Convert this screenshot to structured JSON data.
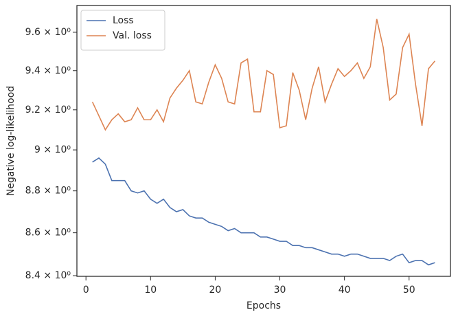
{
  "chart_data": {
    "type": "line",
    "x_label": "Epochs",
    "y_label": "Negative log-likelihood",
    "x": [
      1,
      2,
      3,
      4,
      5,
      6,
      7,
      8,
      9,
      10,
      11,
      12,
      13,
      14,
      15,
      16,
      17,
      18,
      19,
      20,
      21,
      22,
      23,
      24,
      25,
      26,
      27,
      28,
      29,
      30,
      31,
      32,
      33,
      34,
      35,
      36,
      37,
      38,
      39,
      40,
      41,
      42,
      43,
      44,
      45,
      46,
      47,
      48,
      49,
      50,
      51,
      52,
      53,
      54
    ],
    "series": [
      {
        "name": "Loss",
        "color": "#4c72b0",
        "values": [
          8.94,
          8.96,
          8.93,
          8.85,
          8.85,
          8.85,
          8.8,
          8.79,
          8.8,
          8.76,
          8.74,
          8.76,
          8.72,
          8.7,
          8.71,
          8.68,
          8.67,
          8.67,
          8.65,
          8.64,
          8.63,
          8.61,
          8.62,
          8.6,
          8.6,
          8.6,
          8.58,
          8.58,
          8.57,
          8.56,
          8.56,
          8.54,
          8.54,
          8.53,
          8.53,
          8.52,
          8.51,
          8.5,
          8.5,
          8.49,
          8.5,
          8.5,
          8.49,
          8.48,
          8.48,
          8.48,
          8.47,
          8.49,
          8.5,
          8.46,
          8.47,
          8.47,
          8.45,
          8.46
        ]
      },
      {
        "name": "Val. loss",
        "color": "#dd8452",
        "values": [
          9.24,
          9.17,
          9.1,
          9.15,
          9.18,
          9.14,
          9.15,
          9.21,
          9.15,
          9.15,
          9.2,
          9.14,
          9.26,
          9.31,
          9.35,
          9.4,
          9.24,
          9.23,
          9.34,
          9.43,
          9.36,
          9.24,
          9.23,
          9.44,
          9.46,
          9.19,
          9.19,
          9.4,
          9.38,
          9.11,
          9.12,
          9.39,
          9.3,
          9.15,
          9.31,
          9.42,
          9.24,
          9.33,
          9.41,
          9.37,
          9.4,
          9.44,
          9.36,
          9.42,
          9.67,
          9.52,
          9.25,
          9.28,
          9.52,
          9.59,
          9.33,
          9.12,
          9.41,
          9.45
        ]
      }
    ],
    "xlim": [
      -1.4,
      56.4
    ],
    "xticks": [
      0,
      10,
      20,
      30,
      40,
      50
    ],
    "ylim": [
      8.397,
      9.742
    ],
    "y_scale": "log",
    "yticks": [
      {
        "value": 8.4,
        "label": "8.4 × 10⁰"
      },
      {
        "value": 8.6,
        "label": "8.6 × 10⁰"
      },
      {
        "value": 8.8,
        "label": "8.8 × 10⁰"
      },
      {
        "value": 9.0,
        "label": "9 × 10⁰"
      },
      {
        "value": 9.2,
        "label": "9.2 × 10⁰"
      },
      {
        "value": 9.4,
        "label": "9.4 × 10⁰"
      },
      {
        "value": 9.6,
        "label": "9.6 × 10⁰"
      }
    ],
    "grid": false,
    "legend": "upper left"
  }
}
